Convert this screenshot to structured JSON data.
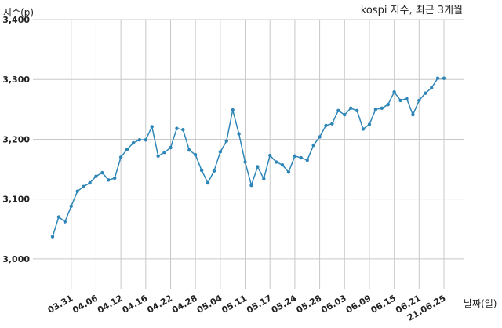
{
  "chart_data": {
    "type": "line",
    "title": "kospi 지수, 최근 3개월",
    "ylabel": "지수(p)",
    "xlabel": "날짜(일)",
    "ylim": [
      2950,
      3400
    ],
    "yticks": [
      3000,
      3100,
      3200,
      3300,
      3400
    ],
    "ytick_labels": [
      "3,000",
      "3,100",
      "3,200",
      "3,300",
      "3,400"
    ],
    "grid": true,
    "line_color": "#2e86b8",
    "x": [
      "03.26",
      "03.29",
      "03.30",
      "03.31",
      "04.01",
      "04.02",
      "04.05",
      "04.06",
      "04.07",
      "04.08",
      "04.09",
      "04.12",
      "04.13",
      "04.14",
      "04.15",
      "04.16",
      "04.19",
      "04.20",
      "04.21",
      "04.22",
      "04.23",
      "04.26",
      "04.27",
      "04.28",
      "04.29",
      "04.30",
      "05.03",
      "05.04",
      "05.06",
      "05.07",
      "05.10",
      "05.11",
      "05.12",
      "05.13",
      "05.14",
      "05.17",
      "05.18",
      "05.20",
      "05.21",
      "05.24",
      "05.25",
      "05.26",
      "05.27",
      "05.28",
      "05.31",
      "06.01",
      "06.02",
      "06.03",
      "06.04",
      "06.07",
      "06.08",
      "06.09",
      "06.10",
      "06.11",
      "06.14",
      "06.15",
      "06.16",
      "06.17",
      "06.18",
      "06.21",
      "06.22",
      "06.23",
      "06.24",
      "21.06.25"
    ],
    "x_tick_labels": [
      "03.31",
      "04.06",
      "04.12",
      "04.16",
      "04.22",
      "04.28",
      "05.04",
      "05.11",
      "05.17",
      "05.24",
      "05.28",
      "06.03",
      "06.09",
      "06.15",
      "06.21",
      "21.06.25"
    ],
    "series": [
      {
        "values": [
          3037,
          3070,
          3062,
          3088,
          3113,
          3121,
          3127,
          3138,
          3144,
          3132,
          3135,
          3170,
          3183,
          3194,
          3199,
          3199,
          3221,
          3172,
          3178,
          3186,
          3218,
          3216,
          3182,
          3174,
          3148,
          3127,
          3147,
          3179,
          3197,
          3249,
          3209,
          3162,
          3123,
          3154,
          3134,
          3173,
          3162,
          3157,
          3145,
          3172,
          3169,
          3165,
          3190,
          3204,
          3223,
          3226,
          3248,
          3241,
          3252,
          3248,
          3217,
          3225,
          3250,
          3252,
          3258,
          3279,
          3265,
          3268,
          3241,
          3265,
          3277,
          3286,
          3302,
          3302
        ]
      }
    ]
  }
}
